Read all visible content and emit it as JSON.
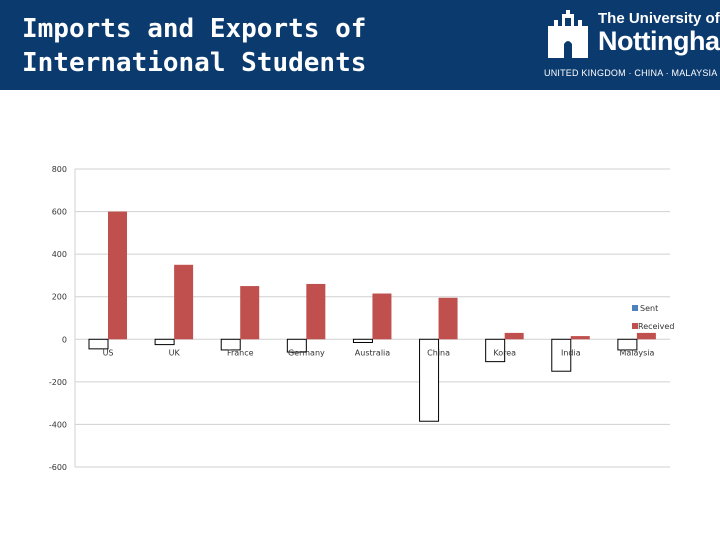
{
  "header": {
    "title_line1": "Imports and Exports of",
    "title_line2": "International Students",
    "logo": {
      "line1": "The University of",
      "line2": "Nottingham",
      "tagline": "UNITED KINGDOM · CHINA · MALAYSIA"
    }
  },
  "chart_data": {
    "type": "bar",
    "categories": [
      "US",
      "UK",
      "France",
      "Germany",
      "Australia",
      "China",
      "Korea",
      "India",
      "Malaysia"
    ],
    "series": [
      {
        "name": "Sent",
        "values": [
          -45,
          -25,
          -50,
          -60,
          -15,
          -385,
          -105,
          -150,
          -50
        ],
        "color": "#ffffff",
        "stroke": "#000000"
      },
      {
        "name": "Received",
        "values": [
          600,
          350,
          250,
          260,
          215,
          195,
          30,
          15,
          30
        ],
        "color": "#c0504d"
      }
    ],
    "yticks": [
      -600,
      -400,
      -200,
      0,
      200,
      400,
      600,
      800
    ],
    "ylim": [
      -600,
      800
    ],
    "grid": true,
    "legend": "right"
  }
}
